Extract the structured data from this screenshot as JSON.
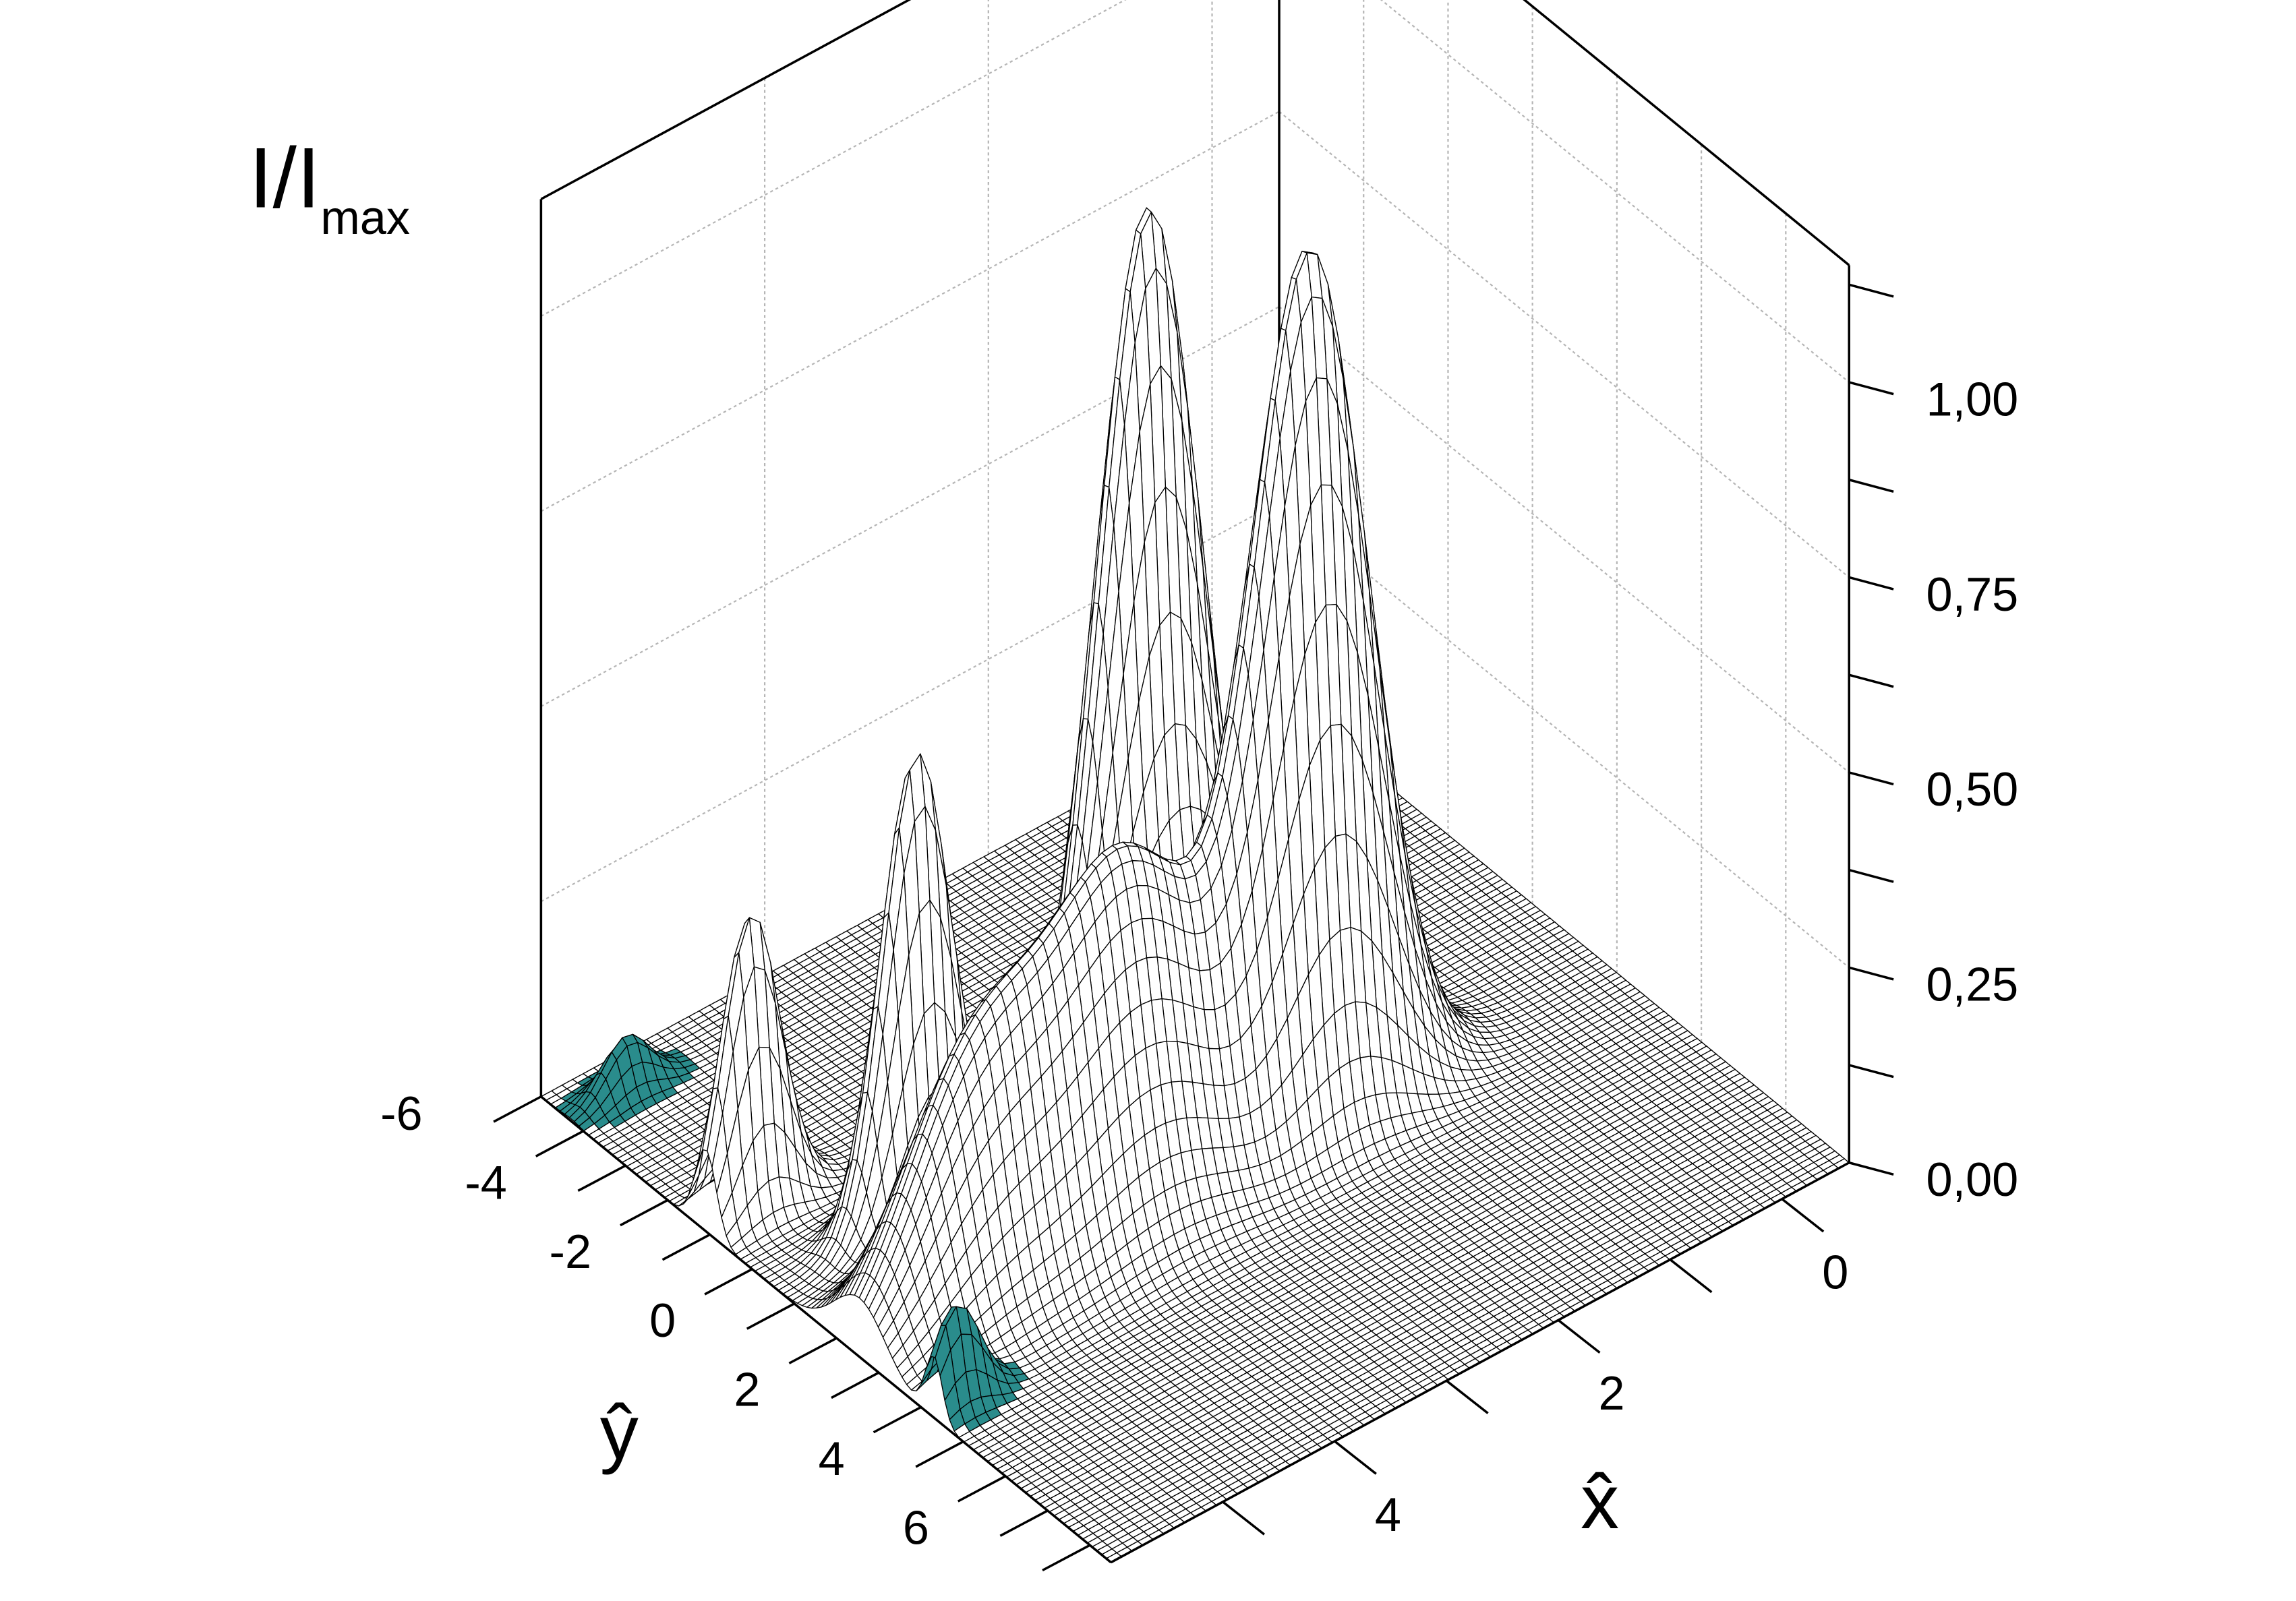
{
  "chart_data": {
    "type": "surface",
    "xlabel": "x̂",
    "ylabel": "ŷ",
    "zlabel": "I/I",
    "zlabel_sub": "max",
    "xlim": [
      -0.6,
      6
    ],
    "ylim": [
      -6,
      7.5
    ],
    "zlim": [
      0,
      1.15
    ],
    "xticks": [
      0,
      2,
      4
    ],
    "xminorticks": [
      1,
      3,
      5
    ],
    "yticks": [
      -6,
      -4,
      -2,
      0,
      2,
      4,
      6
    ],
    "yminorticks": [
      -5,
      -3,
      -1,
      1,
      3,
      5,
      7
    ],
    "zticks": [
      {
        "value": 0,
        "label": "0,00"
      },
      {
        "value": 0.25,
        "label": "0,25"
      },
      {
        "value": 0.5,
        "label": "0,50"
      },
      {
        "value": 0.75,
        "label": "0,75"
      },
      {
        "value": 1,
        "label": "1,00"
      }
    ],
    "zminorticks": [
      0.125,
      0.375,
      0.625,
      0.875,
      1.125
    ],
    "grid": true,
    "surface_color": "#ffffff",
    "mesh_color": "#000000",
    "peaks": [
      {
        "x": 2.8,
        "y": -0.1,
        "z": 1.15,
        "width": 0.45,
        "color": "#ffffff"
      },
      {
        "x": 2.0,
        "y": 1.6,
        "z": 1.1,
        "width": 0.5,
        "color": "#ffffff"
      },
      {
        "x": 4.8,
        "y": -0.3,
        "z": 0.6,
        "width": 0.3,
        "color": "#ffffff"
      },
      {
        "x": 5.6,
        "y": -2.1,
        "z": 0.38,
        "width": 0.25,
        "color": "#ffffff"
      },
      {
        "x": 5.5,
        "y": -5.3,
        "z": 0.07,
        "width": 0.2,
        "color": "#2a8c8c"
      },
      {
        "x": 3.65,
        "y": 1.6,
        "z": 0.45,
        "width": 0.65,
        "color": "#ffffff"
      },
      {
        "x": 5.0,
        "y": 1.55,
        "z": 0.3,
        "width": 0.6,
        "color": "#ffffff"
      },
      {
        "x": 5.8,
        "y": 3.3,
        "z": 0.13,
        "width": 0.2,
        "color": "#2a8c8c"
      }
    ]
  }
}
